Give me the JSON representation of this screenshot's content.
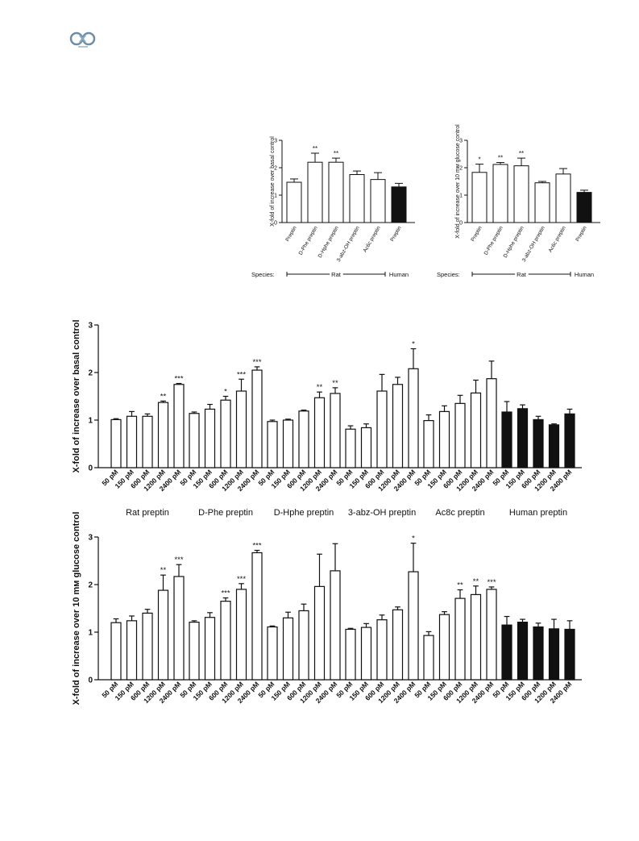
{
  "chart_data": [
    {
      "id": "top-left",
      "type": "bar",
      "ylabel": "X-fold of increase over basal control",
      "ylim": [
        0,
        3
      ],
      "yticks": [
        0,
        1,
        2,
        3
      ],
      "categories": [
        "Preptin",
        "D-Phe preptin",
        "D-Hphe preptin",
        "3-abz-OH preptin",
        "Ac6c preptin",
        "Preptin"
      ],
      "values": [
        1.47,
        2.2,
        2.2,
        1.75,
        1.57,
        1.3
      ],
      "errors": [
        0.12,
        0.33,
        0.15,
        0.13,
        0.25,
        0.13
      ],
      "significance": [
        "",
        "**",
        "**",
        "",
        "",
        ""
      ],
      "fill": [
        "#ffffff",
        "#ffffff",
        "#ffffff",
        "#ffffff",
        "#ffffff",
        "#111111"
      ],
      "species_label": "Species:",
      "species": [
        {
          "label": "Rat",
          "from": 0,
          "to": 4
        },
        {
          "label": "Human",
          "from": 5,
          "to": 5
        }
      ]
    },
    {
      "id": "top-right",
      "type": "bar",
      "ylabel": "X-fold of increase over 10 mᴍ glucose control",
      "ylim": [
        0,
        3
      ],
      "yticks": [
        0,
        1,
        2,
        3
      ],
      "categories": [
        "Preptin",
        "D-Phe preptin",
        "D-Hphe preptin",
        "3-abz-OH preptin",
        "Ac6c preptin",
        "Preptin"
      ],
      "values": [
        1.83,
        2.12,
        2.07,
        1.45,
        1.77,
        1.1
      ],
      "errors": [
        0.3,
        0.07,
        0.28,
        0.05,
        0.2,
        0.08
      ],
      "significance": [
        "*",
        "**",
        "**",
        "",
        "",
        ""
      ],
      "fill": [
        "#ffffff",
        "#ffffff",
        "#ffffff",
        "#ffffff",
        "#ffffff",
        "#111111"
      ],
      "species_label": "Species:",
      "species": [
        {
          "label": "Rat",
          "from": 0,
          "to": 4
        },
        {
          "label": "Human",
          "from": 5,
          "to": 5
        }
      ]
    },
    {
      "id": "middle",
      "type": "bar",
      "ylabel": "X-fold of increase over basal control",
      "ylim": [
        0,
        3
      ],
      "yticks": [
        0,
        1,
        2,
        3
      ],
      "dose_labels": [
        "50 pM",
        "150 pM",
        "600 pM",
        "1200 pM",
        "2400 pM"
      ],
      "groups": [
        {
          "name": "Rat preptin",
          "fill": "#ffffff",
          "values": [
            1.01,
            1.08,
            1.08,
            1.37,
            1.75
          ],
          "errors": [
            0.02,
            0.1,
            0.05,
            0.03,
            0.02
          ],
          "significance": [
            "",
            "",
            "",
            "**",
            "***"
          ]
        },
        {
          "name": "D-Phe preptin",
          "fill": "#ffffff",
          "values": [
            1.14,
            1.23,
            1.42,
            1.61,
            2.05
          ],
          "errors": [
            0.03,
            0.1,
            0.08,
            0.25,
            0.07
          ],
          "significance": [
            "",
            "",
            "*",
            "***",
            "***"
          ]
        },
        {
          "name": "D-Hphe preptin",
          "fill": "#ffffff",
          "values": [
            0.97,
            1.0,
            1.19,
            1.47,
            1.56
          ],
          "errors": [
            0.03,
            0.02,
            0.02,
            0.12,
            0.12
          ],
          "significance": [
            "",
            "",
            "",
            "**",
            "**"
          ]
        },
        {
          "name": "3-abz-OH preptin",
          "fill": "#ffffff",
          "values": [
            0.81,
            0.84,
            1.61,
            1.75,
            2.08
          ],
          "errors": [
            0.07,
            0.08,
            0.35,
            0.15,
            0.42
          ],
          "significance": [
            "",
            "",
            "",
            "",
            "*"
          ]
        },
        {
          "name": "Ac8c preptin",
          "fill": "#ffffff",
          "values": [
            0.99,
            1.18,
            1.35,
            1.57,
            1.87
          ],
          "errors": [
            0.12,
            0.12,
            0.17,
            0.27,
            0.37
          ],
          "significance": [
            "",
            "",
            "",
            "",
            ""
          ]
        },
        {
          "name": "Human preptin",
          "fill": "#111111",
          "values": [
            1.17,
            1.24,
            1.01,
            0.9,
            1.13
          ],
          "errors": [
            0.22,
            0.08,
            0.07,
            0.02,
            0.1
          ],
          "significance": [
            "",
            "",
            "",
            "",
            ""
          ]
        }
      ]
    },
    {
      "id": "bottom",
      "type": "bar",
      "ylabel": "X-fold of increase over 10 mᴍ glucose control",
      "ylim": [
        0,
        3
      ],
      "yticks": [
        0,
        1,
        2,
        3
      ],
      "dose_labels": [
        "50 pM",
        "150 pM",
        "600 pM",
        "1200 pM",
        "2400 pM"
      ],
      "groups": [
        {
          "name": "",
          "fill": "#ffffff",
          "values": [
            1.2,
            1.24,
            1.4,
            1.88,
            2.17
          ],
          "errors": [
            0.08,
            0.1,
            0.08,
            0.32,
            0.25
          ],
          "significance": [
            "",
            "",
            "",
            "**",
            "***"
          ]
        },
        {
          "name": "",
          "fill": "#ffffff",
          "values": [
            1.21,
            1.31,
            1.65,
            1.9,
            2.67
          ],
          "errors": [
            0.03,
            0.1,
            0.07,
            0.12,
            0.05
          ],
          "significance": [
            "",
            "",
            "***",
            "***",
            "***"
          ]
        },
        {
          "name": "",
          "fill": "#ffffff",
          "values": [
            1.11,
            1.3,
            1.45,
            1.96,
            2.29
          ],
          "errors": [
            0.02,
            0.12,
            0.14,
            0.68,
            0.57
          ],
          "significance": [
            "",
            "",
            "",
            "",
            ""
          ]
        },
        {
          "name": "",
          "fill": "#ffffff",
          "values": [
            1.06,
            1.1,
            1.26,
            1.47,
            2.27
          ],
          "errors": [
            0.02,
            0.08,
            0.1,
            0.06,
            0.6
          ],
          "significance": [
            "",
            "",
            "",
            "",
            "*"
          ]
        },
        {
          "name": "",
          "fill": "#ffffff",
          "values": [
            0.93,
            1.37,
            1.71,
            1.79,
            1.9
          ],
          "errors": [
            0.08,
            0.06,
            0.18,
            0.18,
            0.05
          ],
          "significance": [
            "",
            "",
            "**",
            "**",
            "***"
          ]
        },
        {
          "name": "",
          "fill": "#111111",
          "values": [
            1.15,
            1.21,
            1.11,
            1.07,
            1.06
          ],
          "errors": [
            0.18,
            0.06,
            0.08,
            0.2,
            0.18
          ],
          "significance": [
            "",
            "",
            "",
            "",
            ""
          ]
        }
      ]
    }
  ]
}
